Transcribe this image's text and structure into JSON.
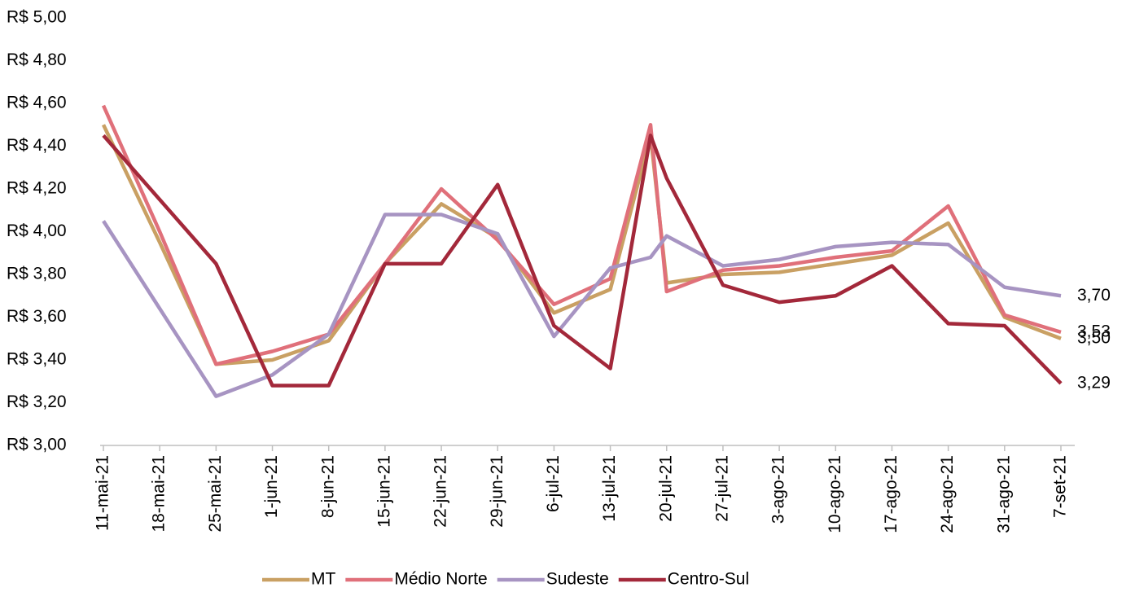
{
  "chart_data": {
    "type": "line",
    "x": [
      "11-mai-21",
      "18-mai-21",
      "25-mai-21",
      "1-jun-21",
      "8-jun-21",
      "15-jun-21",
      "22-jun-21",
      "29-jun-21",
      "6-jul-21",
      "13-jul-21",
      "18-jul-21",
      "20-jul-21",
      "27-jul-21",
      "3-ago-21",
      "10-ago-21",
      "17-ago-21",
      "24-ago-21",
      "31-ago-21",
      "7-set-21"
    ],
    "xticks": [
      "11-mai-21",
      "18-mai-21",
      "25-mai-21",
      "1-jun-21",
      "8-jun-21",
      "15-jun-21",
      "22-jun-21",
      "29-jun-21",
      "6-jul-21",
      "13-jul-21",
      "20-jul-21",
      "27-jul-21",
      "3-ago-21",
      "10-ago-21",
      "17-ago-21",
      "24-ago-21",
      "31-ago-21",
      "7-set-21"
    ],
    "ylim": [
      3.0,
      5.0
    ],
    "yticks": [
      {
        "value": 3.0,
        "label": "R$ 3,00"
      },
      {
        "value": 3.2,
        "label": "R$ 3,20"
      },
      {
        "value": 3.4,
        "label": "R$ 3,40"
      },
      {
        "value": 3.6,
        "label": "R$ 3,60"
      },
      {
        "value": 3.8,
        "label": "R$ 3,80"
      },
      {
        "value": 4.0,
        "label": "R$ 4,00"
      },
      {
        "value": 4.2,
        "label": "R$ 4,20"
      },
      {
        "value": 4.4,
        "label": "R$ 4,40"
      },
      {
        "value": 4.6,
        "label": "R$ 4,60"
      },
      {
        "value": 4.8,
        "label": "R$ 4,80"
      },
      {
        "value": 5.0,
        "label": "R$ 5,00"
      }
    ],
    "series": [
      {
        "name": "MT",
        "color": "#c9a063",
        "values": [
          4.5,
          3.95,
          3.38,
          3.4,
          3.49,
          3.85,
          4.13,
          3.97,
          3.62,
          3.73,
          4.45,
          3.76,
          3.8,
          3.81,
          3.85,
          3.89,
          4.04,
          3.6,
          3.5
        ],
        "last_label": "3,50"
      },
      {
        "name": "Médio Norte",
        "color": "#e0707a",
        "values": [
          4.59,
          4.0,
          3.38,
          3.44,
          3.52,
          3.85,
          4.2,
          3.96,
          3.66,
          3.78,
          4.5,
          3.72,
          3.82,
          3.84,
          3.88,
          3.91,
          4.12,
          3.61,
          3.53
        ],
        "last_label": "3,53"
      },
      {
        "name": "Sudeste",
        "color": "#a794c2",
        "values": [
          4.05,
          3.64,
          3.23,
          3.33,
          3.52,
          4.08,
          4.08,
          3.99,
          3.51,
          3.83,
          3.88,
          3.98,
          3.84,
          3.87,
          3.93,
          3.95,
          3.94,
          3.74,
          3.7
        ],
        "last_label": "3,70"
      },
      {
        "name": "Centro-Sul",
        "color": "#a3283a",
        "values": [
          4.45,
          4.15,
          3.85,
          3.28,
          3.28,
          3.85,
          3.85,
          4.22,
          3.56,
          3.36,
          4.45,
          4.25,
          3.75,
          3.67,
          3.7,
          3.84,
          3.57,
          3.56,
          3.29
        ],
        "last_label": "3,29"
      }
    ]
  }
}
